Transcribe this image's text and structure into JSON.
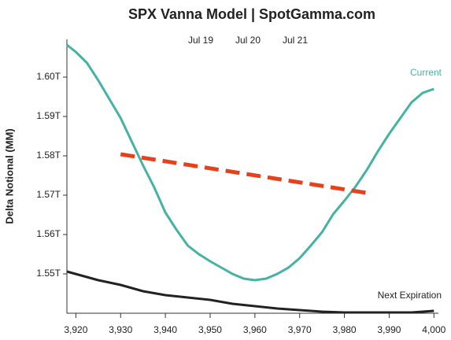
{
  "chart_data": {
    "type": "line",
    "title": "SPX Vanna Model | SpotGamma.com",
    "date_labels": [
      "Jul 19",
      "Jul 20",
      "Jul 21"
    ],
    "y_label": "Delta Notional (MM)",
    "xlim": [
      3918,
      4001
    ],
    "ylim": [
      1.54,
      1.6096
    ],
    "xticks": [
      {
        "value": 3920,
        "label": "3,920"
      },
      {
        "value": 3930,
        "label": "3,930"
      },
      {
        "value": 3940,
        "label": "3,940"
      },
      {
        "value": 3950,
        "label": "3,950"
      },
      {
        "value": 3960,
        "label": "3,960"
      },
      {
        "value": 3970,
        "label": "3,970"
      },
      {
        "value": 3980,
        "label": "3,980"
      },
      {
        "value": 3990,
        "label": "3,990"
      },
      {
        "value": 4000,
        "label": "4,000"
      }
    ],
    "yticks": [
      {
        "value": 1.55,
        "label": "1.55T"
      },
      {
        "value": 1.56,
        "label": "1.56T"
      },
      {
        "value": 1.57,
        "label": "1.57T"
      },
      {
        "value": 1.58,
        "label": "1.58T"
      },
      {
        "value": 1.59,
        "label": "1.59T"
      },
      {
        "value": 1.6,
        "label": "1.60T"
      }
    ],
    "series": [
      {
        "name": "Current",
        "color": "#45b3a3",
        "x": [
          3918,
          3920,
          3922.5,
          3925,
          3927.5,
          3930,
          3932.5,
          3935,
          3937.5,
          3940,
          3942.5,
          3945,
          3947.5,
          3950,
          3952.5,
          3955,
          3957.5,
          3960,
          3962.5,
          3965,
          3967.5,
          3970,
          3972.5,
          3975,
          3977.5,
          3980,
          3982.5,
          3985,
          3987.5,
          3990,
          3992.5,
          3995,
          3997.5,
          4000
        ],
        "values": [
          1.6082,
          1.6064,
          1.6036,
          1.5992,
          1.5944,
          1.5896,
          1.5836,
          1.5776,
          1.572,
          1.5656,
          1.5612,
          1.5572,
          1.555,
          1.5532,
          1.5516,
          1.55,
          1.5488,
          1.5484,
          1.5488,
          1.55,
          1.5516,
          1.554,
          1.5572,
          1.5606,
          1.5652,
          1.5686,
          1.5722,
          1.5764,
          1.5812,
          1.5856,
          1.5896,
          1.5936,
          1.596,
          1.597
        ]
      },
      {
        "name": "Next Expiration",
        "color": "#222222",
        "x": [
          3918,
          3925,
          3930,
          3935,
          3940,
          3945,
          3950,
          3955,
          3960,
          3965,
          3970,
          3975,
          3980,
          3985,
          3990,
          3995,
          4000
        ],
        "values": [
          1.5506,
          1.5484,
          1.5472,
          1.5456,
          1.5446,
          1.544,
          1.5434,
          1.5424,
          1.5418,
          1.5412,
          1.5408,
          1.5404,
          1.5402,
          1.5402,
          1.5402,
          1.5402,
          1.5406
        ]
      },
      {
        "color": "#e8401c",
        "dashed": true,
        "x": [
          3930,
          3986
        ],
        "values": [
          1.5804,
          1.5704
        ]
      }
    ]
  }
}
